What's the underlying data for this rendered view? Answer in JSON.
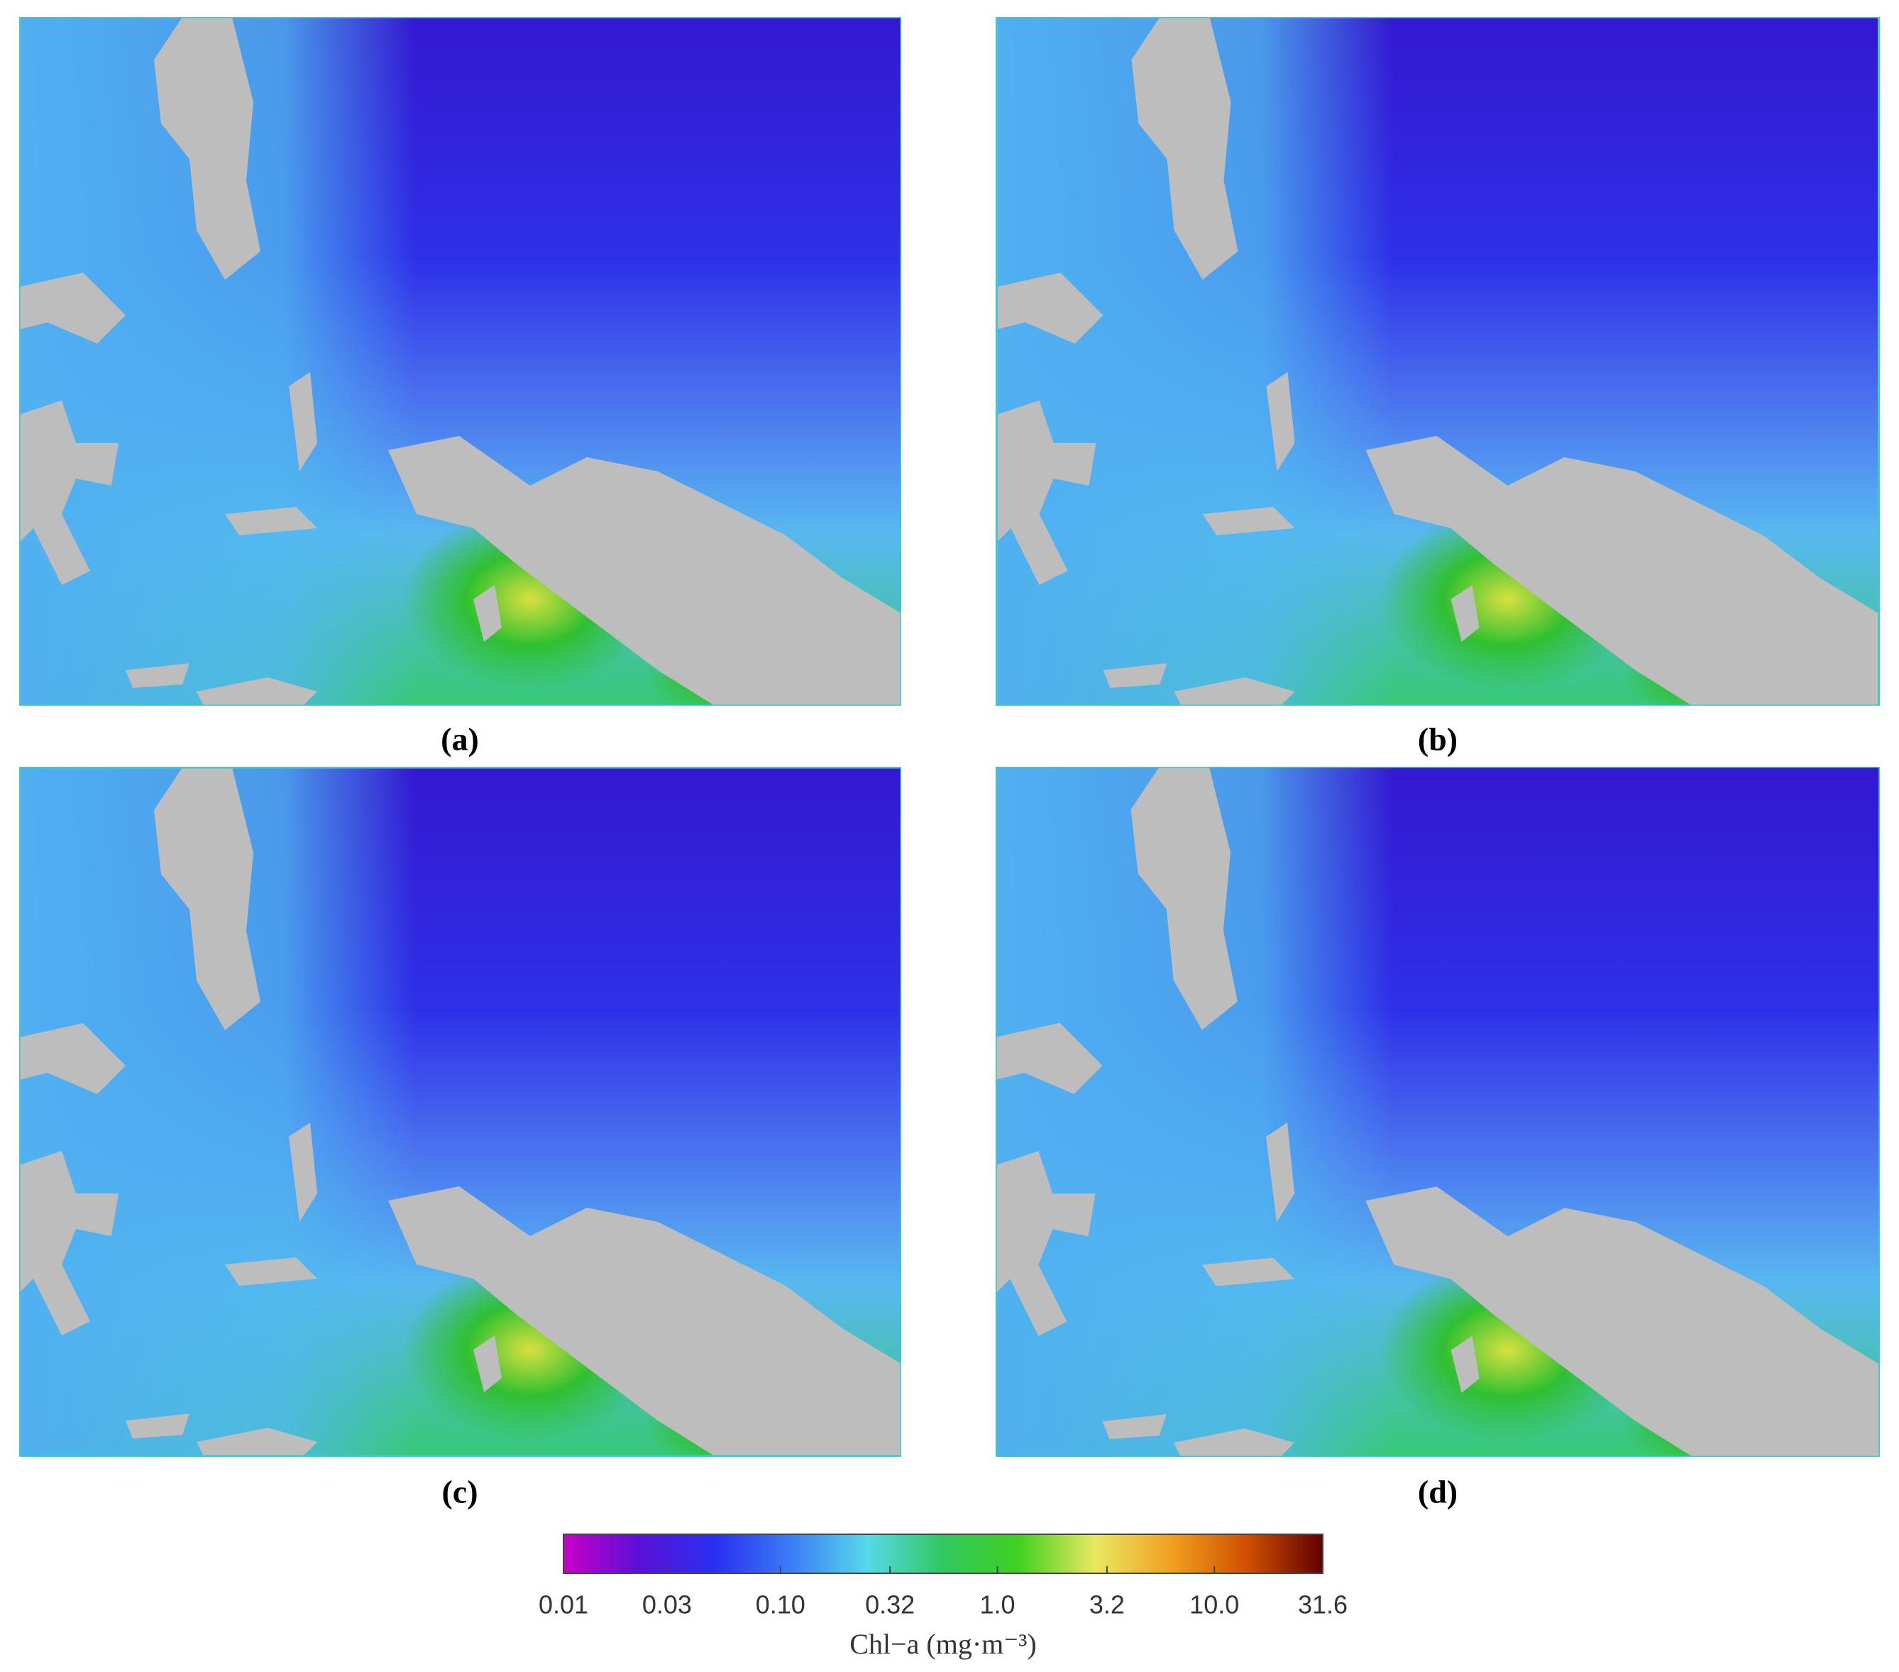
{
  "panels": [
    {
      "label": "(a)"
    },
    {
      "label": "(b)"
    },
    {
      "label": "(c)"
    },
    {
      "label": "(d)"
    }
  ],
  "colorbar": {
    "label": "Chl−a (mg·m⁻³)",
    "scale": "log",
    "lim": [
      0.01,
      31.6
    ],
    "ticks": [
      0.01,
      0.03,
      {
        "value": 0.1,
        "label": "0.10"
      },
      0.32,
      {
        "value": 1,
        "label": "1.0"
      },
      3.2,
      {
        "value": 10,
        "label": "10.0"
      },
      31.6
    ],
    "colors": [
      "#c800c8",
      "#5a10d8",
      "#2a30f0",
      "#3c7cf8",
      "#56d8e8",
      "#30c860",
      "#40d020",
      "#e8e860",
      "#f0a020",
      "#d05000",
      "#600000"
    ]
  }
}
